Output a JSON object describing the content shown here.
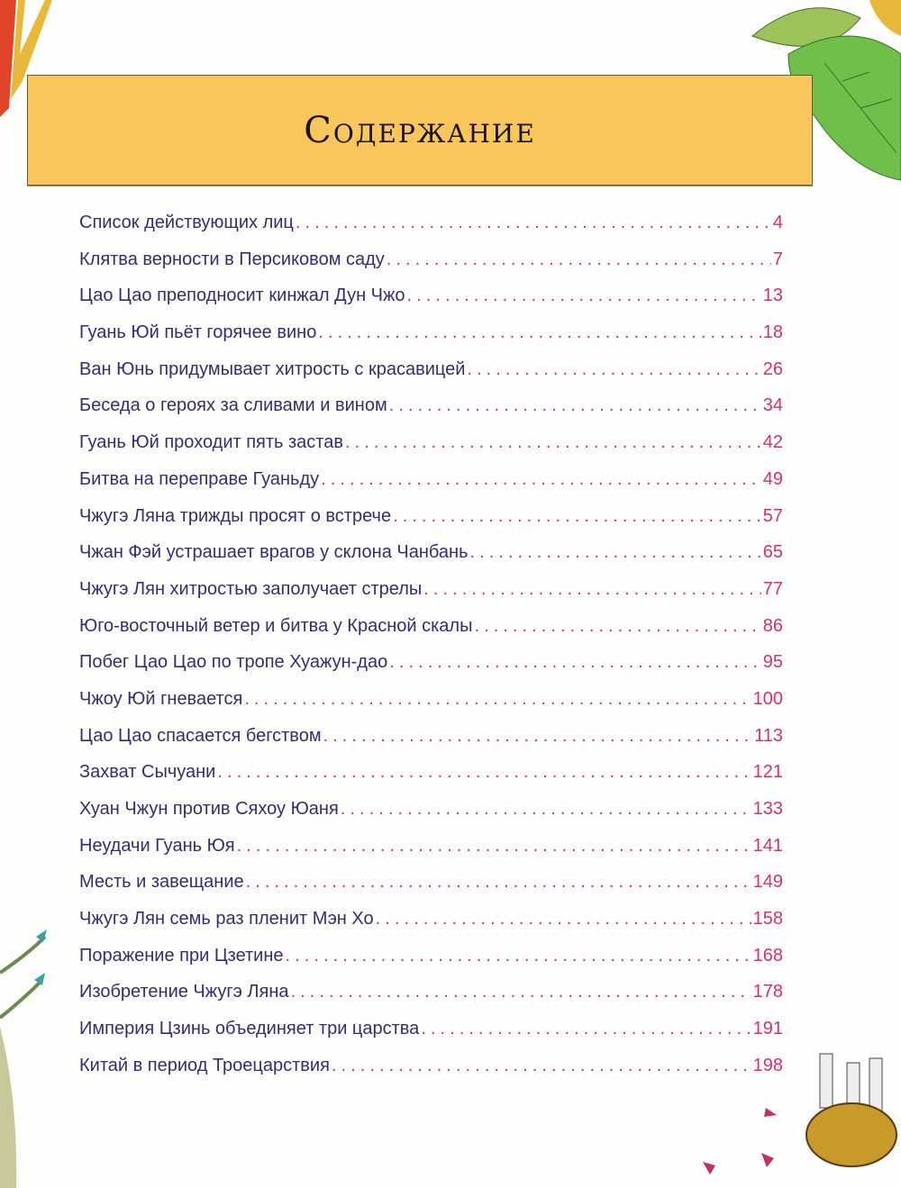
{
  "header": {
    "title": "Содержание"
  },
  "colors": {
    "banner": "#f8c65a",
    "entry_text": "#3b2a72",
    "page_numbers": "#d3326c"
  },
  "toc": [
    {
      "title": "Список действующих лиц",
      "page": "4"
    },
    {
      "title": "Клятва верности в Персиковом саду",
      "page": "7"
    },
    {
      "title": "Цао Цао преподносит кинжал Дун Чжо",
      "page": "13"
    },
    {
      "title": "Гуань Юй пьёт горячее вино",
      "page": "18"
    },
    {
      "title": "Ван Юнь придумывает хитрость с красавицей",
      "page": "26"
    },
    {
      "title": "Беседа о героях за сливами и вином",
      "page": "34"
    },
    {
      "title": "Гуань Юй проходит пять застав",
      "page": "42"
    },
    {
      "title": "Битва на переправе Гуаньду",
      "page": "49"
    },
    {
      "title": "Чжугэ Ляна трижды просят о встрече",
      "page": "57"
    },
    {
      "title": "Чжан Фэй устрашает врагов у склона Чанбань",
      "page": "65"
    },
    {
      "title": "Чжугэ Лян хитростью заполучает стрелы",
      "page": "77"
    },
    {
      "title": "Юго-восточный ветер и битва у Красной скалы",
      "page": "86"
    },
    {
      "title": "Побег Цао Цао по тропе Хуажун-дао",
      "page": "95"
    },
    {
      "title": "Чжоу Юй гневается",
      "page": "100"
    },
    {
      "title": "Цао Цао спасается бегством",
      "page": "113"
    },
    {
      "title": "Захват Сычуани",
      "page": "121"
    },
    {
      "title": "Хуан Чжун против Сяхоу Юаня",
      "page": "133"
    },
    {
      "title": "Неудачи Гуань Юя",
      "page": "141"
    },
    {
      "title": "Месть и завещание",
      "page": "149"
    },
    {
      "title": "Чжугэ Лян семь раз пленит Мэн Хо",
      "page": "158"
    },
    {
      "title": "Поражение при Цзетине",
      "page": "168"
    },
    {
      "title": "Изобретение Чжугэ Ляна",
      "page": "178"
    },
    {
      "title": "Империя Цзинь объединяет три царства",
      "page": "191"
    },
    {
      "title": "Китай в период Троецарствия",
      "page": "198"
    }
  ]
}
